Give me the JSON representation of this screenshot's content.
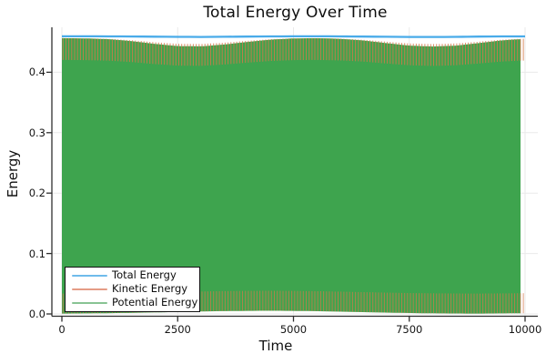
{
  "chart_data": {
    "type": "line",
    "title": "Total Energy Over Time",
    "xlabel": "Time",
    "ylabel": "Energy",
    "xlim": [
      0,
      10000
    ],
    "ylim": [
      0,
      0.474
    ],
    "grid": true,
    "legend_position": "bottom-left",
    "xticks": {
      "values": [
        0,
        2500,
        5000,
        7500,
        10000
      ],
      "labels": [
        "0",
        "2500",
        "5000",
        "7500",
        "10000"
      ]
    },
    "yticks": {
      "values": [
        0.0,
        0.1,
        0.2,
        0.3,
        0.4
      ],
      "labels": [
        "0.0",
        "0.1",
        "0.2",
        "0.3",
        "0.4"
      ]
    },
    "colors": {
      "grid": "#eaeaea",
      "spine": "#2f2f2f",
      "tick_text": "#151515"
    },
    "envelope_t": [
      0,
      500,
      1000,
      1500,
      2000,
      2500,
      3000,
      3500,
      4000,
      4500,
      5000,
      5500,
      6000,
      6500,
      7000,
      7500,
      8000,
      8500,
      9000,
      9500,
      10000
    ],
    "series": [
      {
        "name": "Total Energy",
        "color": "#3fa7e8",
        "legend_color": "#6fbbeb",
        "style": "nearly-constant line along the top of the band",
        "values": [
          0.4595,
          0.4595,
          0.4594,
          0.4592,
          0.4589,
          0.4586,
          0.4585,
          0.4587,
          0.459,
          0.4593,
          0.4595,
          0.4595,
          0.4594,
          0.4591,
          0.4588,
          0.4585,
          0.4584,
          0.4586,
          0.459,
          0.4593,
          0.4594
        ]
      },
      {
        "name": "Kinetic Energy",
        "color": "#d6784a",
        "legend_color": "#e59c86",
        "style": "fast-oscillation filling band, antiphase with Potential Energy",
        "period": 62.5,
        "envelope_max": [
          0.4565,
          0.4562,
          0.4553,
          0.453,
          0.4497,
          0.4471,
          0.4468,
          0.4489,
          0.452,
          0.4547,
          0.4562,
          0.4565,
          0.4557,
          0.4538,
          0.4506,
          0.4477,
          0.4466,
          0.4476,
          0.4506,
          0.4539,
          0.4556
        ],
        "envelope_min": [
          0.0006,
          0.0009,
          0.0013,
          0.0018,
          0.0026,
          0.0033,
          0.0041,
          0.0047,
          0.0051,
          0.0053,
          0.0051,
          0.0046,
          0.0038,
          0.003,
          0.0022,
          0.0015,
          0.001,
          0.0007,
          0.0006,
          0.0009,
          0.0013
        ]
      },
      {
        "name": "Potential Energy",
        "color": "#3ea44e",
        "legend_color": "#88c493",
        "style": "fast-oscillation filling band, dominant fill color",
        "period": 62.5,
        "envelope_max": [
          0.4565,
          0.4562,
          0.4553,
          0.453,
          0.4497,
          0.4471,
          0.4468,
          0.4489,
          0.452,
          0.4547,
          0.4562,
          0.4565,
          0.4557,
          0.4538,
          0.4506,
          0.4477,
          0.4466,
          0.4476,
          0.4506,
          0.4539,
          0.4556
        ],
        "envelope_min": [
          0.0006,
          0.0009,
          0.0013,
          0.0018,
          0.0026,
          0.0033,
          0.0041,
          0.0047,
          0.0051,
          0.0053,
          0.0051,
          0.0046,
          0.0038,
          0.003,
          0.0022,
          0.0015,
          0.001,
          0.0007,
          0.0006,
          0.0009,
          0.0013
        ]
      }
    ]
  }
}
